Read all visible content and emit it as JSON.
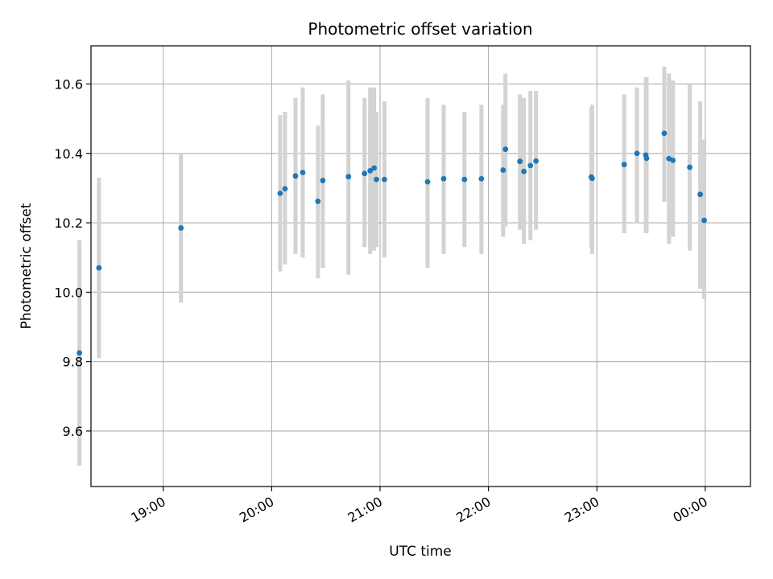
{
  "chart_data": {
    "type": "scatter",
    "title": "Photometric offset variation",
    "xlabel": "UTC time",
    "ylabel": "Photometric offset",
    "x_unit": "minutes",
    "xlim": [
      1100,
      1465
    ],
    "ylim": [
      9.44,
      10.71
    ],
    "grid": true,
    "legend": "none",
    "x_ticks": [
      {
        "value": 1140,
        "label": "19:00"
      },
      {
        "value": 1200,
        "label": "20:00"
      },
      {
        "value": 1260,
        "label": "21:00"
      },
      {
        "value": 1320,
        "label": "22:00"
      },
      {
        "value": 1380,
        "label": "23:00"
      },
      {
        "value": 1440,
        "label": "00:00"
      }
    ],
    "y_ticks": [
      {
        "value": 9.6,
        "label": "9.6"
      },
      {
        "value": 9.8,
        "label": "9.8"
      },
      {
        "value": 10.0,
        "label": "10.0"
      },
      {
        "value": 10.2,
        "label": "10.2"
      },
      {
        "value": 10.4,
        "label": "10.4"
      },
      {
        "value": 10.6,
        "label": "10.6"
      }
    ],
    "colors": {
      "marker": "#1f77b4",
      "errorbar": "#d3d3d3",
      "grid": "#b0b0b0"
    },
    "series": [
      {
        "points": [
          {
            "x": 1093.6,
            "y": 9.825,
            "lo": 9.5,
            "hi": 10.15
          },
          {
            "x": 1104.4,
            "y": 10.07,
            "lo": 9.81,
            "hi": 10.33
          },
          {
            "x": 1149.8,
            "y": 10.185,
            "lo": 9.97,
            "hi": 10.4
          },
          {
            "x": 1204.7,
            "y": 10.285,
            "lo": 10.06,
            "hi": 10.51
          },
          {
            "x": 1207.4,
            "y": 10.298,
            "lo": 10.08,
            "hi": 10.52
          },
          {
            "x": 1213.2,
            "y": 10.335,
            "lo": 10.11,
            "hi": 10.56
          },
          {
            "x": 1217.2,
            "y": 10.345,
            "lo": 10.1,
            "hi": 10.59
          },
          {
            "x": 1225.6,
            "y": 10.262,
            "lo": 10.04,
            "hi": 10.48
          },
          {
            "x": 1228.3,
            "y": 10.322,
            "lo": 10.07,
            "hi": 10.57
          },
          {
            "x": 1242.5,
            "y": 10.333,
            "lo": 10.05,
            "hi": 10.61
          },
          {
            "x": 1251.4,
            "y": 10.342,
            "lo": 10.13,
            "hi": 10.56
          },
          {
            "x": 1254.5,
            "y": 10.35,
            "lo": 10.11,
            "hi": 10.59
          },
          {
            "x": 1256.7,
            "y": 10.358,
            "lo": 10.12,
            "hi": 10.59
          },
          {
            "x": 1258.0,
            "y": 10.325,
            "lo": 10.13,
            "hi": 10.52
          },
          {
            "x": 1262.4,
            "y": 10.325,
            "lo": 10.1,
            "hi": 10.55
          },
          {
            "x": 1286.3,
            "y": 10.318,
            "lo": 10.07,
            "hi": 10.56
          },
          {
            "x": 1295.2,
            "y": 10.327,
            "lo": 10.11,
            "hi": 10.54
          },
          {
            "x": 1306.7,
            "y": 10.325,
            "lo": 10.13,
            "hi": 10.52
          },
          {
            "x": 1316.1,
            "y": 10.327,
            "lo": 10.11,
            "hi": 10.54
          },
          {
            "x": 1328.1,
            "y": 10.352,
            "lo": 10.16,
            "hi": 10.54
          },
          {
            "x": 1329.4,
            "y": 10.412,
            "lo": 10.19,
            "hi": 10.63
          },
          {
            "x": 1337.4,
            "y": 10.377,
            "lo": 10.18,
            "hi": 10.57
          },
          {
            "x": 1339.6,
            "y": 10.348,
            "lo": 10.14,
            "hi": 10.56
          },
          {
            "x": 1343.2,
            "y": 10.365,
            "lo": 10.15,
            "hi": 10.58
          },
          {
            "x": 1346.3,
            "y": 10.378,
            "lo": 10.18,
            "hi": 10.58
          },
          {
            "x": 1376.9,
            "y": 10.332,
            "lo": 10.13,
            "hi": 10.53
          },
          {
            "x": 1377.4,
            "y": 10.328,
            "lo": 10.11,
            "hi": 10.54
          },
          {
            "x": 1395.1,
            "y": 10.368,
            "lo": 10.17,
            "hi": 10.57
          },
          {
            "x": 1402.2,
            "y": 10.4,
            "lo": 10.2,
            "hi": 10.59
          },
          {
            "x": 1407.1,
            "y": 10.395,
            "lo": 10.17,
            "hi": 10.62
          },
          {
            "x": 1407.5,
            "y": 10.386,
            "lo": 10.17,
            "hi": 10.62
          },
          {
            "x": 1417.3,
            "y": 10.458,
            "lo": 10.26,
            "hi": 10.65
          },
          {
            "x": 1419.9,
            "y": 10.385,
            "lo": 10.14,
            "hi": 10.63
          },
          {
            "x": 1422.1,
            "y": 10.38,
            "lo": 10.16,
            "hi": 10.61
          },
          {
            "x": 1431.4,
            "y": 10.36,
            "lo": 10.12,
            "hi": 10.6
          },
          {
            "x": 1437.2,
            "y": 10.282,
            "lo": 10.01,
            "hi": 10.55
          },
          {
            "x": 1439.4,
            "y": 10.207,
            "lo": 9.98,
            "hi": 10.44
          }
        ]
      }
    ]
  }
}
